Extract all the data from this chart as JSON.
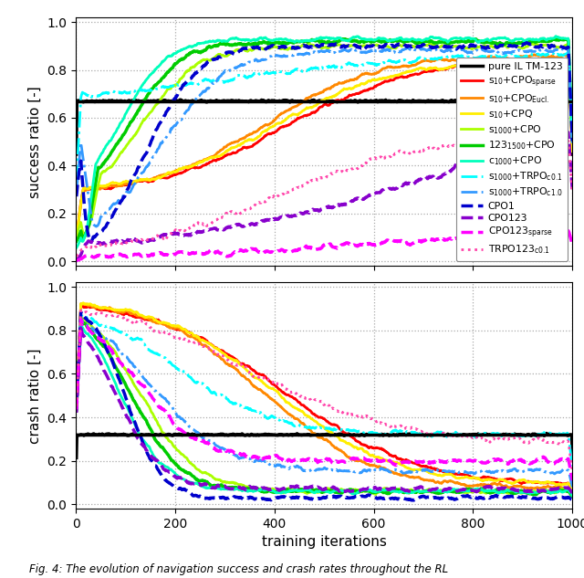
{
  "title_top": "success ratio [-]",
  "title_bottom": "crash ratio [-]",
  "xlabel": "training iterations",
  "fig_caption": "Fig. 4: The evolution of navigation success and crash rates throughout the RL",
  "xmin": 0,
  "xmax": 1000,
  "success_hline": 0.67,
  "crash_hline": 0.32,
  "grid_color": "#aaaaaa",
  "hline_color": "#000000",
  "background": "#ffffff",
  "colors": {
    "pure_IL": "#000000",
    "s10_sparse": "#ff0000",
    "s10_eucl": "#ff8800",
    "s10_cpq": "#ffee00",
    "s1000_cpo": "#aaff00",
    "c123_1500": "#00cc00",
    "c1000_cpo": "#00ffbb",
    "s1000_trpo01": "#00ffff",
    "s1000_trpo10": "#3399ff",
    "cpo1": "#0000cc",
    "cpo123": "#8800cc",
    "cpo123_sparse": "#ff00ff",
    "trpo123_01": "#ff44aa"
  }
}
